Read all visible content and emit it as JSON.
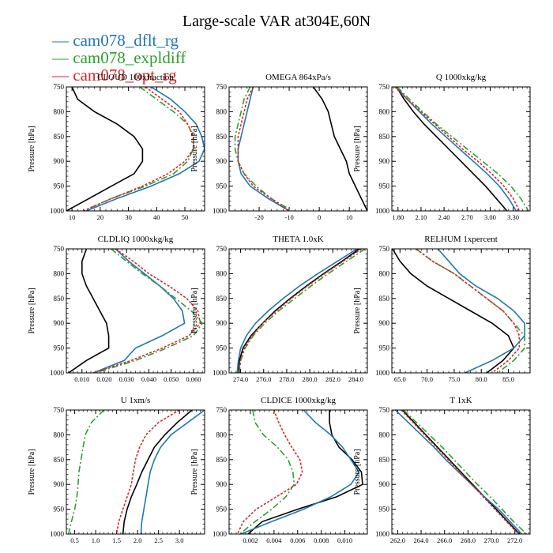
{
  "figure": {
    "title": "Large-scale VAR at304E,60N",
    "legend": [
      {
        "label": "— cam078_dflt_rg",
        "color": "#1f77b4"
      },
      {
        "label": "— cam078_expldiff",
        "color": "#2ca02c"
      },
      {
        "label": "— cam078_opt_rg",
        "color": "#d62728"
      }
    ]
  },
  "chart_data": [
    {
      "type": "line",
      "title": "CLOUD 100xfraction",
      "ylabel": "Pressure [hPa]",
      "xlim": [
        8,
        57
      ],
      "ylim": [
        1000,
        750
      ],
      "xticks": [
        10,
        20,
        30,
        40,
        50
      ],
      "xtick_labels": [
        "10",
        "20",
        "30",
        "40",
        "50"
      ],
      "yticks": [
        750,
        800,
        850,
        900,
        950,
        1000
      ],
      "ytick_labels": [
        "750",
        "800",
        "850",
        "900",
        "950",
        "1000"
      ],
      "y": [
        750,
        775,
        800,
        825,
        850,
        875,
        900,
        925,
        950,
        975,
        1000
      ],
      "series": [
        {
          "color": "#000000",
          "dash": "",
          "x": [
            10,
            12,
            18,
            26,
            32,
            35,
            35,
            32,
            24,
            16,
            8
          ]
        },
        {
          "color": "#1f77b4",
          "dash": "",
          "x": [
            38,
            45,
            50,
            54,
            56,
            57,
            55,
            48,
            38,
            26,
            15
          ]
        },
        {
          "color": "#2ca02c",
          "dash": "8,3,2,3",
          "x": [
            34,
            40,
            46,
            51,
            53,
            53,
            51,
            46,
            36,
            24,
            14
          ]
        },
        {
          "color": "#d62728",
          "dash": "3,2",
          "x": [
            36,
            42,
            48,
            51,
            53,
            53,
            50,
            44,
            35,
            24,
            14
          ]
        }
      ]
    },
    {
      "type": "line",
      "title": "OMEGA 864xPa/s",
      "ylabel": "Pressure [hPa]",
      "xlim": [
        -30,
        16
      ],
      "ylim": [
        1000,
        750
      ],
      "xticks": [
        -20,
        -10,
        0,
        10
      ],
      "xtick_labels": [
        "-20",
        "-10",
        "0",
        "10"
      ],
      "yticks": [
        750,
        800,
        850,
        900,
        950,
        1000
      ],
      "ytick_labels": [
        "750",
        "800",
        "850",
        "900",
        "950",
        "1000"
      ],
      "y": [
        750,
        775,
        800,
        825,
        850,
        875,
        900,
        925,
        950,
        975,
        1000
      ],
      "series": [
        {
          "color": "#000000",
          "dash": "",
          "x": [
            -2,
            1,
            3,
            4,
            5,
            7,
            9,
            10,
            12,
            14,
            16
          ]
        },
        {
          "color": "#1f77b4",
          "dash": "",
          "x": [
            -22,
            -23,
            -24,
            -25,
            -26,
            -27,
            -27,
            -26,
            -23,
            -17,
            -10
          ]
        },
        {
          "color": "#2ca02c",
          "dash": "8,3,2,3",
          "x": [
            -23,
            -25,
            -26,
            -27,
            -28,
            -28,
            -27,
            -25,
            -21,
            -16,
            -9
          ]
        },
        {
          "color": "#d62728",
          "dash": "3,2",
          "x": [
            -22,
            -24,
            -25,
            -26,
            -27,
            -27,
            -27,
            -25,
            -22,
            -16,
            -10
          ]
        }
      ]
    },
    {
      "type": "line",
      "title": "Q 1000xkg/kg",
      "ylabel": "Pressure [hPa]",
      "xlim": [
        1.72,
        3.52
      ],
      "ylim": [
        1000,
        750
      ],
      "xticks": [
        1.8,
        2.1,
        2.4,
        2.7,
        3.0,
        3.3
      ],
      "xtick_labels": [
        "1.80",
        "2.10",
        "2.40",
        "2.70",
        "3.00",
        "3.30"
      ],
      "yticks": [
        750,
        800,
        850,
        900,
        950,
        1000
      ],
      "ytick_labels": [
        "750",
        "800",
        "850",
        "900",
        "950",
        "1000"
      ],
      "y": [
        750,
        775,
        800,
        825,
        850,
        875,
        900,
        925,
        950,
        975,
        1000
      ],
      "series": [
        {
          "color": "#000000",
          "dash": "",
          "x": [
            1.78,
            1.88,
            2.0,
            2.14,
            2.3,
            2.46,
            2.62,
            2.78,
            2.94,
            3.08,
            3.22
          ]
        },
        {
          "color": "#1f77b4",
          "dash": "",
          "x": [
            1.78,
            1.92,
            2.08,
            2.24,
            2.42,
            2.6,
            2.78,
            2.96,
            3.12,
            3.24,
            3.34
          ]
        },
        {
          "color": "#2ca02c",
          "dash": "8,3,2,3",
          "x": [
            1.79,
            1.95,
            2.12,
            2.3,
            2.5,
            2.7,
            2.9,
            3.1,
            3.27,
            3.4,
            3.5
          ]
        },
        {
          "color": "#d62728",
          "dash": "3,2",
          "x": [
            1.76,
            1.92,
            2.1,
            2.28,
            2.46,
            2.64,
            2.84,
            3.02,
            3.18,
            3.3,
            3.38
          ]
        }
      ]
    },
    {
      "type": "line",
      "title": "CLDLIQ 1000xkg/kg",
      "ylabel": "Pressure [hPa]",
      "xlim": [
        0.003,
        0.065
      ],
      "ylim": [
        1000,
        750
      ],
      "xticks": [
        0.01,
        0.02,
        0.03,
        0.04,
        0.05,
        0.06
      ],
      "xtick_labels": [
        "0.010",
        "0.020",
        "0.030",
        "0.040",
        "0.050",
        "0.060"
      ],
      "yticks": [
        750,
        800,
        850,
        900,
        950,
        1000
      ],
      "ytick_labels": [
        "750",
        "800",
        "850",
        "900",
        "950",
        "1000"
      ],
      "y": [
        750,
        775,
        800,
        825,
        850,
        875,
        900,
        925,
        950,
        975,
        1000
      ],
      "series": [
        {
          "color": "#000000",
          "dash": "",
          "x": [
            0.012,
            0.01,
            0.01,
            0.012,
            0.015,
            0.018,
            0.021,
            0.022,
            0.022,
            0.012,
            0.004
          ]
        },
        {
          "color": "#1f77b4",
          "dash": "",
          "x": [
            0.025,
            0.031,
            0.038,
            0.045,
            0.051,
            0.055,
            0.056,
            0.046,
            0.034,
            0.029,
            0.015
          ]
        },
        {
          "color": "#2ca02c",
          "dash": "8,3,2,3",
          "x": [
            0.023,
            0.03,
            0.037,
            0.045,
            0.052,
            0.059,
            0.064,
            0.06,
            0.048,
            0.034,
            0.016
          ]
        },
        {
          "color": "#d62728",
          "dash": "3,2",
          "x": [
            0.025,
            0.033,
            0.04,
            0.049,
            0.057,
            0.062,
            0.063,
            0.058,
            0.046,
            0.032,
            0.015
          ]
        }
      ]
    },
    {
      "type": "line",
      "title": "THETA 1.0xK",
      "ylabel": "Pressure [hPa]",
      "xlim": [
        273.0,
        285.0
      ],
      "ylim": [
        1000,
        750
      ],
      "xticks": [
        274,
        276,
        278,
        280,
        282,
        284
      ],
      "xtick_labels": [
        "274.0",
        "276.0",
        "278.0",
        "280.0",
        "282.0",
        "284.0"
      ],
      "yticks": [
        750,
        800,
        850,
        900,
        950,
        1000
      ],
      "ytick_labels": [
        "750",
        "800",
        "850",
        "900",
        "950",
        "1000"
      ],
      "y": [
        750,
        775,
        800,
        825,
        850,
        875,
        900,
        925,
        950,
        975,
        1000
      ],
      "series": [
        {
          "color": "#000000",
          "dash": "",
          "x": [
            284.3,
            282.8,
            281.2,
            279.7,
            278.3,
            277.0,
            275.9,
            274.9,
            274.2,
            273.9,
            273.8
          ]
        },
        {
          "color": "#1f77b4",
          "dash": "",
          "x": [
            284.1,
            282.4,
            280.7,
            279.1,
            277.7,
            276.4,
            275.3,
            274.5,
            274.0,
            273.8,
            273.7
          ]
        },
        {
          "color": "#2ca02c",
          "dash": "8,3,2,3",
          "x": [
            284.8,
            283.2,
            281.6,
            280.1,
            278.7,
            277.3,
            276.1,
            275.1,
            274.4,
            274.0,
            273.9
          ]
        },
        {
          "color": "#d62728",
          "dash": "3,2",
          "x": [
            284.5,
            282.9,
            281.3,
            279.8,
            278.4,
            277.1,
            275.9,
            275.0,
            274.3,
            274.0,
            273.8
          ]
        }
      ]
    },
    {
      "type": "line",
      "title": "RELHUM 1xpercent",
      "ylabel": "Pressure [hPa]",
      "xlim": [
        63.5,
        89.0
      ],
      "ylim": [
        1000,
        750
      ],
      "xticks": [
        65,
        70,
        75,
        80,
        85
      ],
      "xtick_labels": [
        "65.0",
        "70.0",
        "75.0",
        "80.0",
        "85.0"
      ],
      "yticks": [
        750,
        800,
        850,
        900,
        950,
        1000
      ],
      "ytick_labels": [
        "750",
        "800",
        "850",
        "900",
        "950",
        "1000"
      ],
      "y": [
        750,
        775,
        800,
        825,
        850,
        875,
        900,
        925,
        950,
        975,
        1000
      ],
      "series": [
        {
          "color": "#000000",
          "dash": "",
          "x": [
            63.6,
            65,
            67,
            70,
            74,
            78,
            82,
            85,
            86,
            84,
            81
          ]
        },
        {
          "color": "#1f77b4",
          "dash": "",
          "x": [
            72,
            74,
            76,
            79,
            83,
            86,
            88,
            88,
            86,
            82,
            77
          ]
        },
        {
          "color": "#2ca02c",
          "dash": "8,3,2,3",
          "x": [
            68,
            71,
            75,
            78,
            81,
            84,
            86,
            88,
            88,
            86,
            83
          ]
        },
        {
          "color": "#d62728",
          "dash": "3,2",
          "x": [
            68,
            71,
            75,
            78,
            81,
            84,
            86,
            87,
            87,
            85,
            82
          ]
        }
      ]
    },
    {
      "type": "line",
      "title": "U 1xm/s",
      "ylabel": "Pressure [hPa]",
      "xlim": [
        0.3,
        3.6
      ],
      "ylim": [
        1000,
        750
      ],
      "xticks": [
        0.5,
        1.0,
        1.5,
        2.0,
        2.5,
        3.0
      ],
      "xtick_labels": [
        "0.5",
        "1.0",
        "1.5",
        "2.0",
        "2.5",
        "3.0"
      ],
      "yticks": [
        750,
        800,
        850,
        900,
        950,
        1000
      ],
      "ytick_labels": [
        "750",
        "800",
        "850",
        "900",
        "950",
        "1000"
      ],
      "y": [
        750,
        775,
        800,
        825,
        850,
        875,
        900,
        925,
        950,
        975,
        1000
      ],
      "series": [
        {
          "color": "#000000",
          "dash": "",
          "x": [
            3.3,
            2.95,
            2.65,
            2.4,
            2.25,
            2.1,
            1.98,
            1.85,
            1.75,
            1.68,
            1.65
          ]
        },
        {
          "color": "#1f77b4",
          "dash": "",
          "x": [
            3.6,
            3.2,
            2.8,
            2.55,
            2.4,
            2.3,
            2.25,
            2.2,
            2.15,
            2.1,
            2.08
          ]
        },
        {
          "color": "#2ca02c",
          "dash": "8,3,2,3",
          "x": [
            1.2,
            0.9,
            0.75,
            0.7,
            0.65,
            0.6,
            0.58,
            0.55,
            0.5,
            0.42,
            0.35
          ]
        },
        {
          "color": "#d62728",
          "dash": "3,2",
          "x": [
            3.0,
            2.5,
            2.2,
            2.05,
            1.95,
            1.9,
            1.85,
            1.75,
            1.65,
            1.55,
            1.5
          ]
        }
      ]
    },
    {
      "type": "line",
      "title": "CLDICE 1000xkg/kg",
      "ylabel": "Pressure [hPa]",
      "xlim": [
        0.0002,
        0.0119
      ],
      "ylim": [
        1000,
        750
      ],
      "xticks": [
        0.002,
        0.004,
        0.006,
        0.008,
        0.01
      ],
      "xtick_labels": [
        "0.002",
        "0.004",
        "0.006",
        "0.008",
        "0.010"
      ],
      "yticks": [
        750,
        800,
        850,
        900,
        950,
        1000
      ],
      "ytick_labels": [
        "750",
        "800",
        "850",
        "900",
        "950",
        "1000"
      ],
      "y": [
        750,
        775,
        800,
        825,
        850,
        875,
        900,
        925,
        950,
        975,
        1000
      ],
      "series": [
        {
          "color": "#000000",
          "dash": "",
          "x": [
            0.0087,
            0.0087,
            0.0089,
            0.0095,
            0.0106,
            0.0114,
            0.0115,
            0.0093,
            0.006,
            0.003,
            0.0018
          ]
        },
        {
          "color": "#1f77b4",
          "dash": "",
          "x": [
            0.0065,
            0.0075,
            0.0088,
            0.0098,
            0.0105,
            0.0112,
            0.0105,
            0.0088,
            0.0065,
            0.0038,
            0.0012
          ]
        },
        {
          "color": "#2ca02c",
          "dash": "8,3,2,3",
          "x": [
            0.0022,
            0.0024,
            0.0031,
            0.0043,
            0.0052,
            0.0056,
            0.0057,
            0.005,
            0.0038,
            0.0024,
            0.0011
          ]
        },
        {
          "color": "#d62728",
          "dash": "3,2",
          "x": [
            0.004,
            0.0044,
            0.0049,
            0.0055,
            0.0062,
            0.0064,
            0.0059,
            0.0042,
            0.0025,
            0.0014,
            0.0009
          ]
        }
      ]
    },
    {
      "type": "line",
      "title": "T 1xK",
      "ylabel": "Pressure [hPa]",
      "xlim": [
        261.5,
        273.3
      ],
      "ylim": [
        1000,
        750
      ],
      "xticks": [
        262,
        264,
        266,
        268,
        270,
        272
      ],
      "xtick_labels": [
        "262.0",
        "264.0",
        "266.0",
        "268.0",
        "270.0",
        "272.0"
      ],
      "yticks": [
        750,
        800,
        850,
        900,
        950,
        1000
      ],
      "ytick_labels": [
        "750",
        "800",
        "850",
        "900",
        "950",
        "1000"
      ],
      "y": [
        750,
        775,
        800,
        825,
        850,
        875,
        900,
        925,
        950,
        975,
        1000
      ],
      "series": [
        {
          "color": "#000000",
          "dash": "",
          "x": [
            262.4,
            263.4,
            264.4,
            265.4,
            266.4,
            267.4,
            268.4,
            269.4,
            270.4,
            271.4,
            272.4
          ]
        },
        {
          "color": "#1f77b4",
          "dash": "",
          "x": [
            261.8,
            262.9,
            264.0,
            265.1,
            266.1,
            267.2,
            268.3,
            269.4,
            270.6,
            271.6,
            272.6
          ]
        },
        {
          "color": "#2ca02c",
          "dash": "8,3,2,3",
          "x": [
            262.5,
            263.6,
            264.7,
            265.8,
            266.8,
            267.8,
            268.8,
            269.9,
            270.9,
            271.9,
            273.0
          ]
        },
        {
          "color": "#d62728",
          "dash": "3,2",
          "x": [
            262.3,
            263.3,
            264.3,
            265.3,
            266.3,
            267.3,
            268.3,
            269.3,
            270.3,
            271.3,
            272.3
          ]
        }
      ]
    }
  ]
}
